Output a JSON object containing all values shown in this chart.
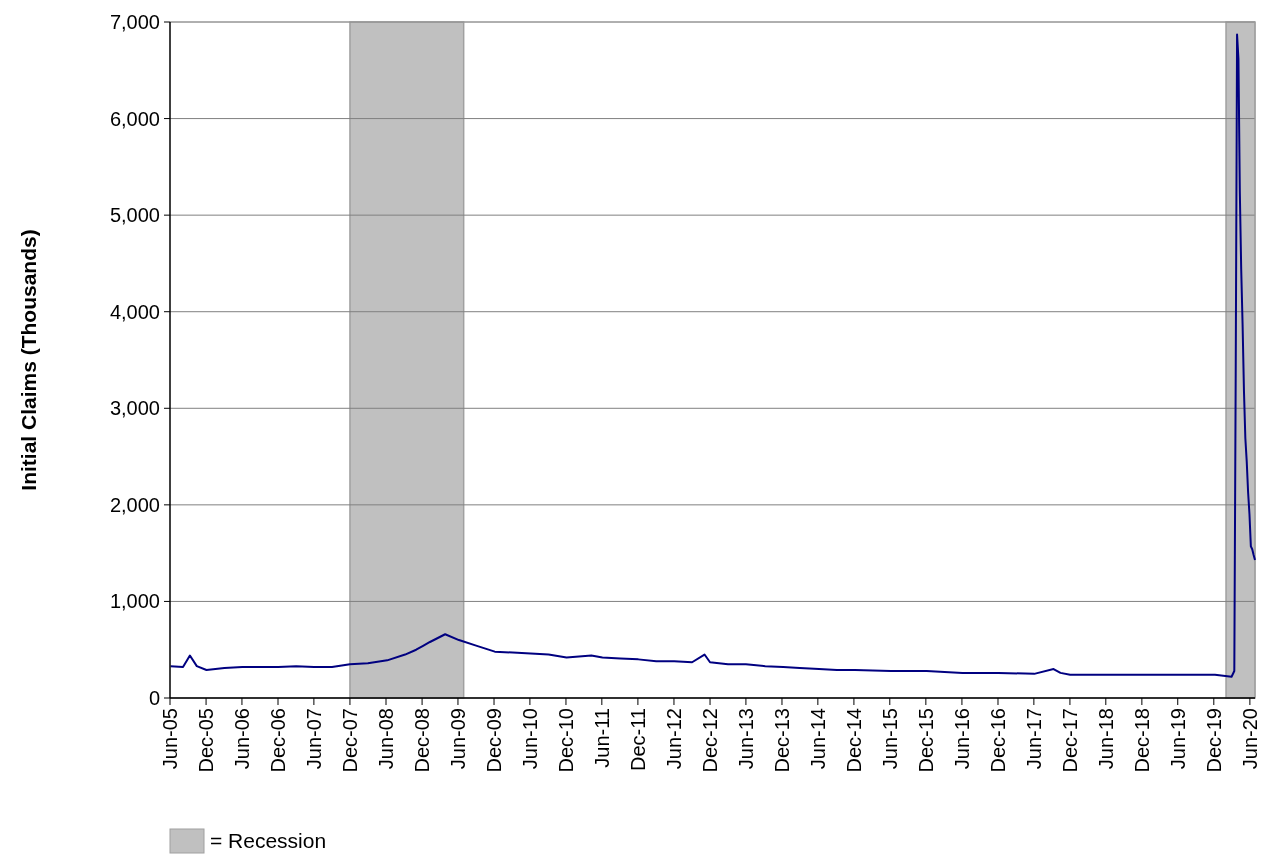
{
  "chart_data": {
    "type": "line",
    "ylabel": "Initial Claims (Thousands)",
    "xlim": [
      "2005-06-01",
      "2020-06-27"
    ],
    "ylim": [
      0,
      7000
    ],
    "yticks": [
      0,
      {
        "value": 1000,
        "label": "1,000"
      },
      {
        "value": 2000,
        "label": "2,000"
      },
      {
        "value": 3000,
        "label": "3,000"
      },
      {
        "value": 4000,
        "label": "4,000"
      },
      {
        "value": 5000,
        "label": "5,000"
      },
      {
        "value": 6000,
        "label": "6,000"
      },
      {
        "value": 7000,
        "label": "7,000"
      }
    ],
    "xticks": [
      {
        "value": "2005-06-01",
        "label": "Jun-05"
      },
      {
        "value": "2005-12-01",
        "label": "Dec-05"
      },
      {
        "value": "2006-06-01",
        "label": "Jun-06"
      },
      {
        "value": "2006-12-01",
        "label": "Dec-06"
      },
      {
        "value": "2007-06-01",
        "label": "Jun-07"
      },
      {
        "value": "2007-12-01",
        "label": "Dec-07"
      },
      {
        "value": "2008-06-01",
        "label": "Jun-08"
      },
      {
        "value": "2008-12-01",
        "label": "Dec-08"
      },
      {
        "value": "2009-06-01",
        "label": "Jun-09"
      },
      {
        "value": "2009-12-01",
        "label": "Dec-09"
      },
      {
        "value": "2010-06-01",
        "label": "Jun-10"
      },
      {
        "value": "2010-12-01",
        "label": "Dec-10"
      },
      {
        "value": "2011-06-01",
        "label": "Jun-11"
      },
      {
        "value": "2011-12-01",
        "label": "Dec-11"
      },
      {
        "value": "2012-06-01",
        "label": "Jun-12"
      },
      {
        "value": "2012-12-01",
        "label": "Dec-12"
      },
      {
        "value": "2013-06-01",
        "label": "Jun-13"
      },
      {
        "value": "2013-12-01",
        "label": "Dec-13"
      },
      {
        "value": "2014-06-01",
        "label": "Jun-14"
      },
      {
        "value": "2014-12-01",
        "label": "Dec-14"
      },
      {
        "value": "2015-06-01",
        "label": "Jun-15"
      },
      {
        "value": "2015-12-01",
        "label": "Dec-15"
      },
      {
        "value": "2016-06-01",
        "label": "Jun-16"
      },
      {
        "value": "2016-12-01",
        "label": "Dec-16"
      },
      {
        "value": "2017-06-01",
        "label": "Jun-17"
      },
      {
        "value": "2017-12-01",
        "label": "Dec-17"
      },
      {
        "value": "2018-06-01",
        "label": "Jun-18"
      },
      {
        "value": "2018-12-01",
        "label": "Dec-18"
      },
      {
        "value": "2019-06-01",
        "label": "Jun-19"
      },
      {
        "value": "2019-12-01",
        "label": "Dec-19"
      },
      {
        "value": "2020-06-01",
        "label": "Jun-20"
      }
    ],
    "grid": "y",
    "legend": "bottom left",
    "bands": [
      {
        "axis": "x",
        "from": "2007-12-01",
        "to": "2009-06-30",
        "label": "= Recession",
        "color": "#c0c0c0"
      },
      {
        "axis": "x",
        "from": "2020-02-01",
        "to": "2020-06-27",
        "color": "#c0c0c0"
      }
    ],
    "series": [
      {
        "color": "#000080",
        "x": [
          "2005-06-04",
          "2005-08-06",
          "2005-09-10",
          "2005-10-15",
          "2005-12-03",
          "2006-03-04",
          "2006-06-03",
          "2006-09-02",
          "2006-12-02",
          "2007-03-03",
          "2007-06-02",
          "2007-09-01",
          "2007-12-01",
          "2008-03-01",
          "2008-06-07",
          "2008-09-06",
          "2008-11-01",
          "2008-12-06",
          "2009-01-10",
          "2009-03-28",
          "2009-06-06",
          "2009-09-05",
          "2009-12-05",
          "2010-03-06",
          "2010-06-05",
          "2010-09-04",
          "2010-12-04",
          "2011-04-09",
          "2011-06-04",
          "2011-09-03",
          "2011-12-03",
          "2012-03-03",
          "2012-06-02",
          "2012-09-01",
          "2012-11-03",
          "2012-12-01",
          "2013-03-02",
          "2013-06-01",
          "2013-09-07",
          "2013-12-07",
          "2014-03-01",
          "2014-06-07",
          "2014-09-06",
          "2014-12-06",
          "2015-06-06",
          "2015-12-05",
          "2016-06-04",
          "2016-12-03",
          "2017-06-03",
          "2017-09-09",
          "2017-10-14",
          "2017-12-02",
          "2018-06-02",
          "2018-12-01",
          "2019-06-01",
          "2019-12-07",
          "2020-02-29",
          "2020-03-14",
          "2020-03-21",
          "2020-03-28",
          "2020-04-04",
          "2020-04-11",
          "2020-04-18",
          "2020-04-25",
          "2020-05-02",
          "2020-05-09",
          "2020-05-16",
          "2020-05-23",
          "2020-05-30",
          "2020-06-06",
          "2020-06-13",
          "2020-06-20",
          "2020-06-27"
        ],
        "values": [
          330,
          320,
          440,
          330,
          290,
          310,
          320,
          320,
          320,
          330,
          320,
          320,
          350,
          360,
          390,
          450,
          500,
          540,
          580,
          660,
          600,
          540,
          480,
          470,
          460,
          450,
          420,
          440,
          420,
          410,
          400,
          380,
          380,
          370,
          450,
          370,
          350,
          350,
          330,
          320,
          310,
          300,
          290,
          290,
          280,
          280,
          260,
          260,
          250,
          300,
          260,
          240,
          240,
          240,
          240,
          240,
          220,
          280,
          3310,
          6870,
          6620,
          5240,
          4440,
          3870,
          3180,
          2690,
          2450,
          2130,
          1900,
          1570,
          1540,
          1480,
          1430
        ]
      }
    ]
  }
}
